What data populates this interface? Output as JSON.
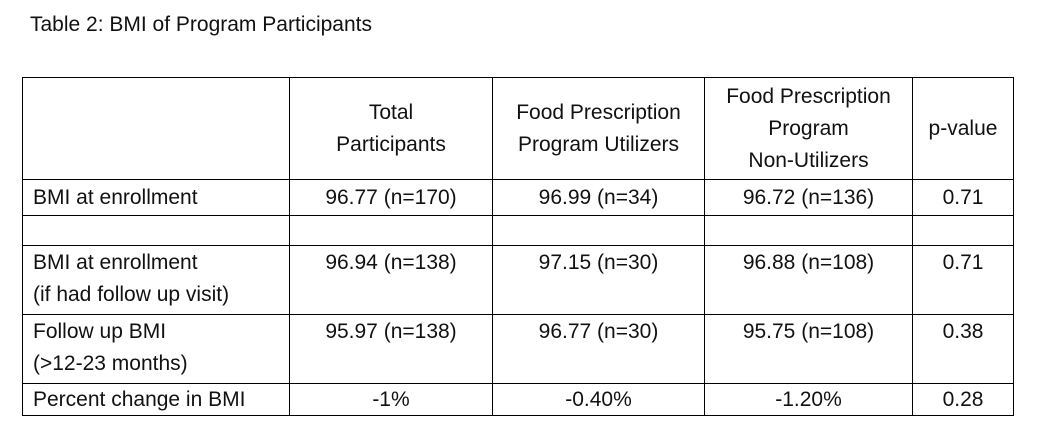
{
  "caption": "Table 2: BMI of Program Participants",
  "table": {
    "headers": [
      {
        "lines": []
      },
      {
        "lines": [
          "Total",
          "Participants"
        ]
      },
      {
        "lines": [
          "Food Prescription",
          "Program Utilizers"
        ]
      },
      {
        "lines": [
          "Food Prescription",
          "Program",
          "Non-Utilizers"
        ]
      },
      {
        "lines": [
          "p-value"
        ]
      }
    ],
    "rows": [
      {
        "label_lines": [
          "BMI at enrollment"
        ],
        "cells": [
          "96.77 (n=170)",
          "96.99 (n=34)",
          "96.72 (n=136)",
          "0.71"
        ]
      },
      {
        "label_lines": [
          ""
        ],
        "cells": [
          "",
          "",
          "",
          ""
        ]
      },
      {
        "label_lines": [
          "BMI at enrollment",
          "(if had follow up visit)"
        ],
        "cells": [
          "96.94 (n=138)",
          "97.15 (n=30)",
          "96.88 (n=108)",
          "0.71"
        ]
      },
      {
        "label_lines": [
          "Follow up BMI",
          "(>12-23 months)"
        ],
        "cells": [
          "95.97 (n=138)",
          "96.77 (n=30)",
          "95.75 (n=108)",
          "0.38"
        ]
      },
      {
        "label_lines": [
          "Percent change in BMI"
        ],
        "cells": [
          "-1%",
          "-0.40%",
          "-1.20%",
          "0.28"
        ]
      }
    ]
  }
}
